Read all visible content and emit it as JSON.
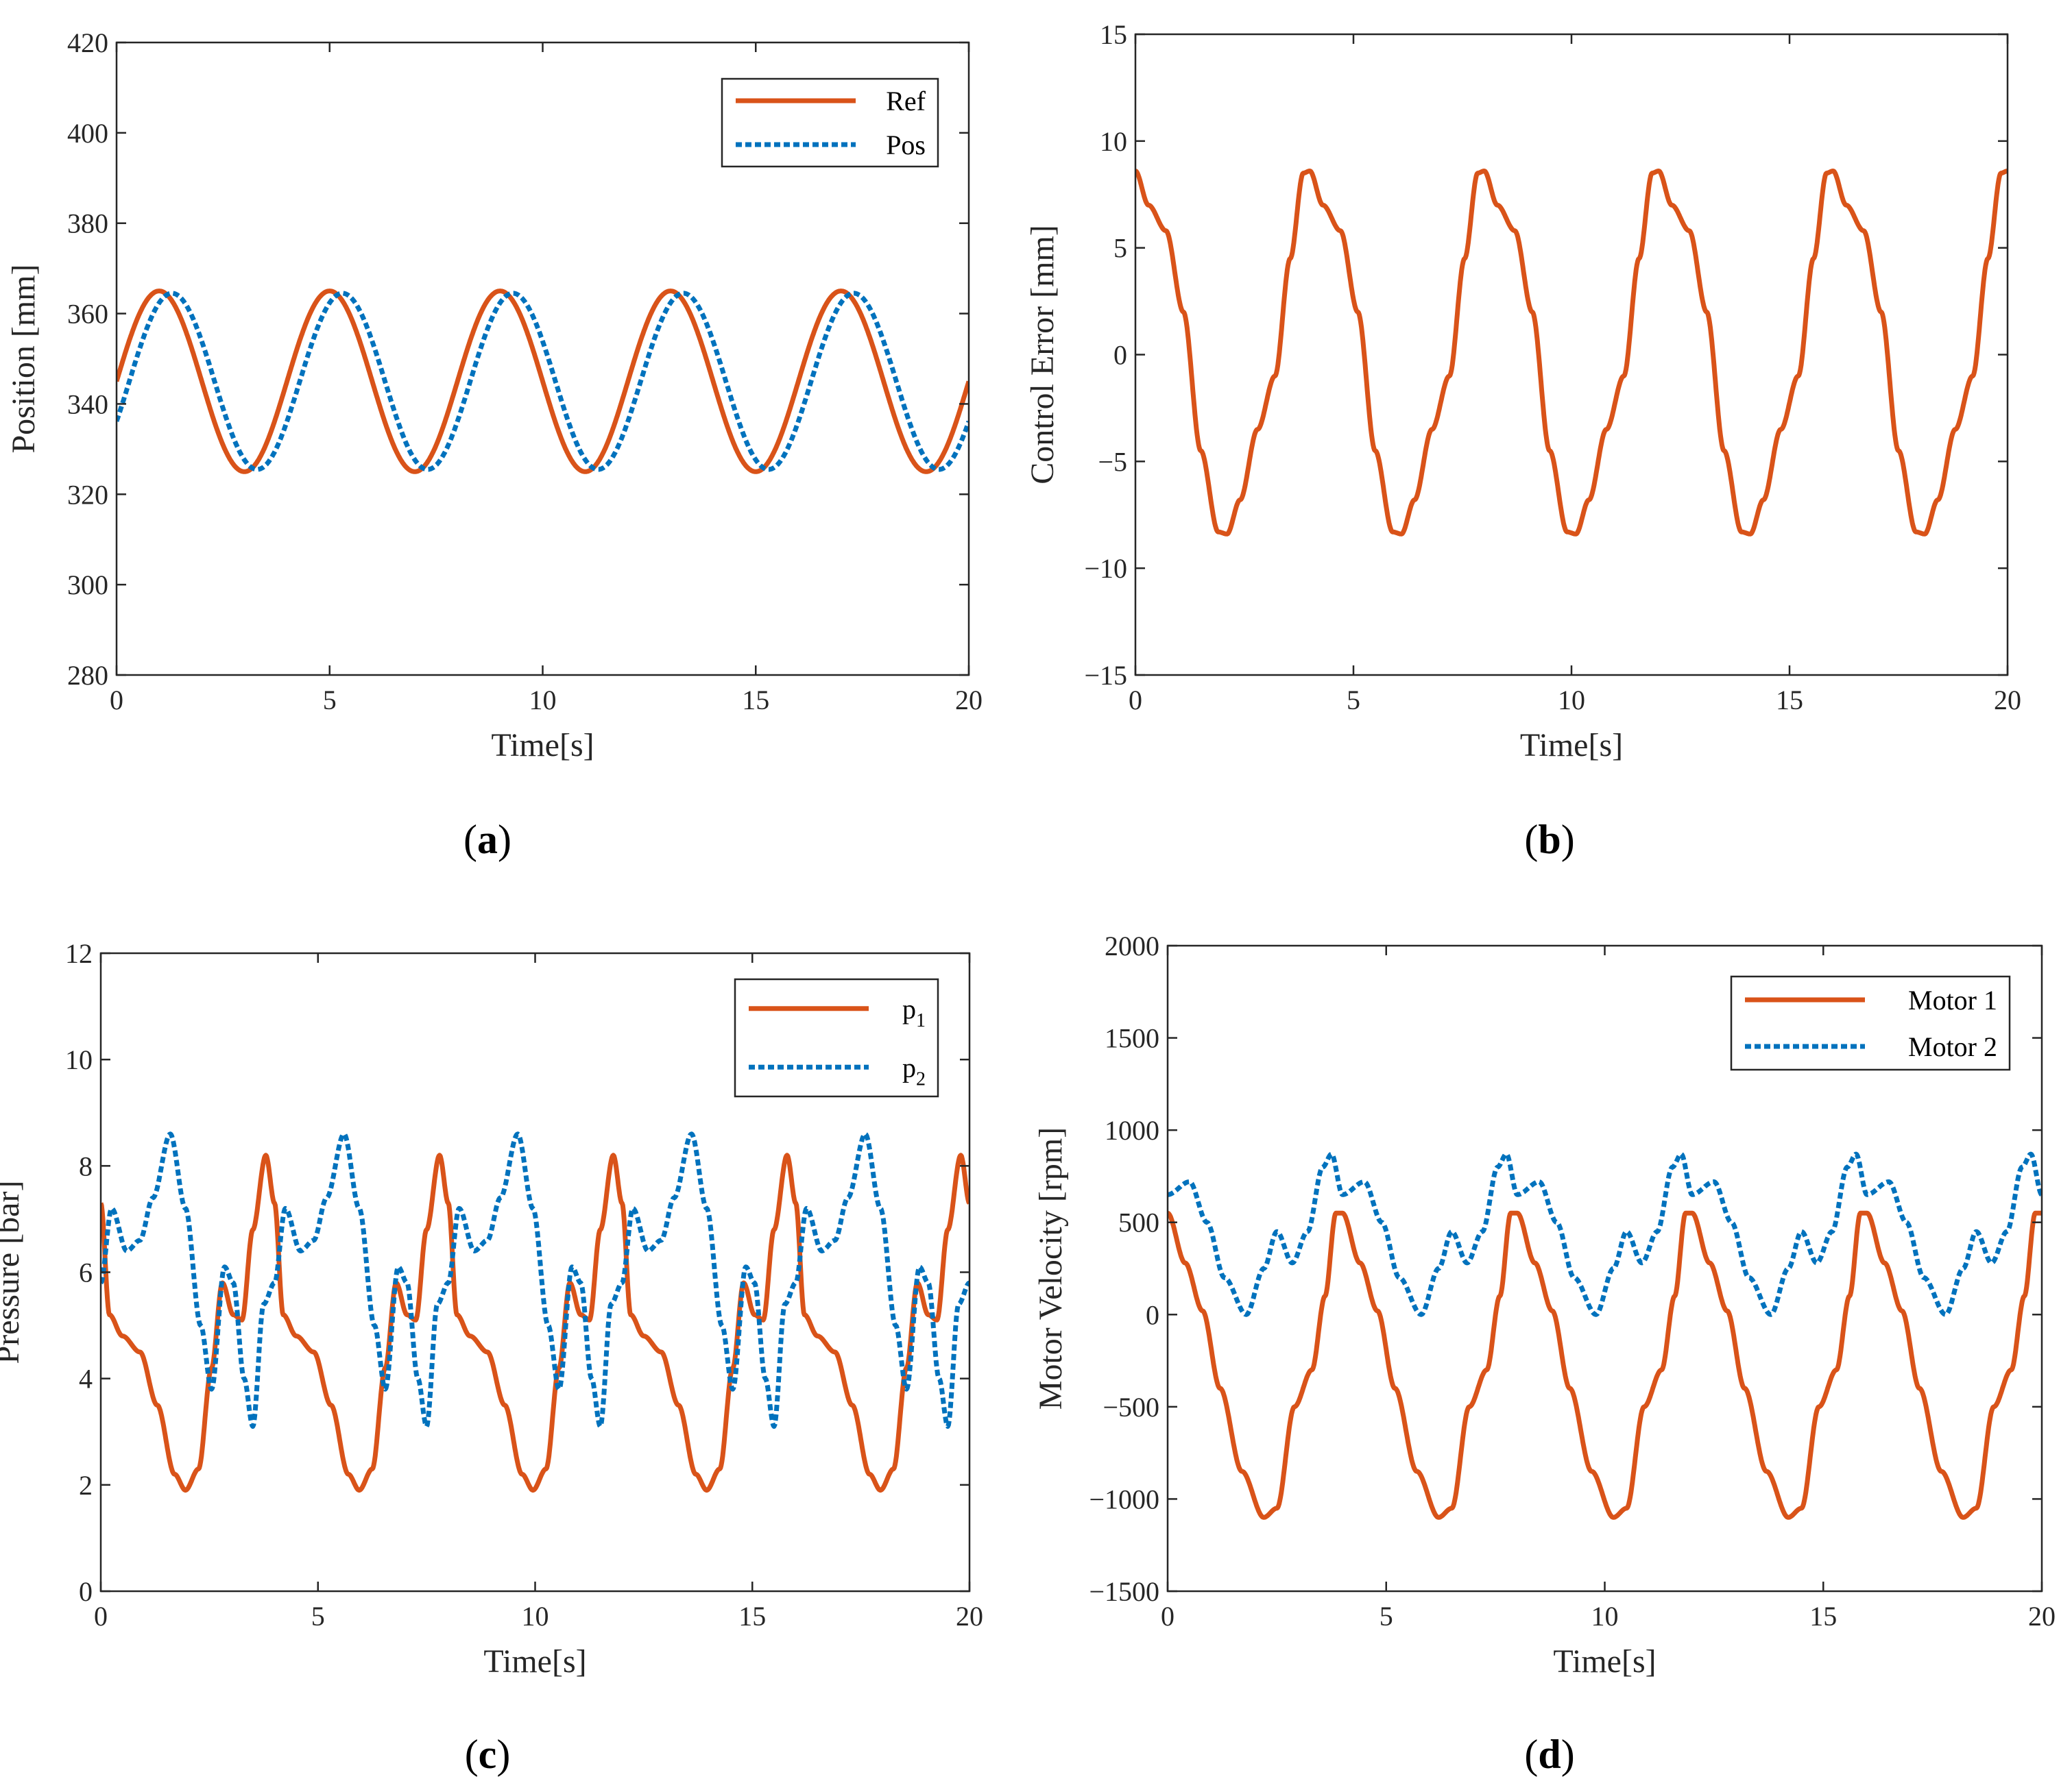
{
  "figure": {
    "colors": {
      "series1": "#D95319",
      "series2": "#0072BD",
      "axis": "#262626"
    }
  },
  "chart_data": [
    {
      "type": "line",
      "panel": "a",
      "caption": {
        "open": "(",
        "letter": "a",
        "close": ")"
      },
      "xlabel": "Time[s]",
      "ylabel": "Position [mm]",
      "xlim": [
        0,
        20
      ],
      "ylim": [
        280,
        420
      ],
      "xticks": [
        0,
        5,
        10,
        15,
        20
      ],
      "yticks": [
        280,
        300,
        320,
        340,
        360,
        380,
        400,
        420
      ],
      "legend_position": "top-right",
      "legend": [
        {
          "label": "Ref"
        },
        {
          "label": "Pos"
        }
      ],
      "series": [
        {
          "name": "Ref",
          "style": "solid",
          "model": {
            "kind": "sine",
            "offset": 345,
            "amplitude": 20,
            "period": 4,
            "phase_deg": 0
          }
        },
        {
          "name": "Pos",
          "style": "dotted",
          "model": {
            "kind": "sine",
            "offset": 345,
            "amplitude": 19.5,
            "period": 4,
            "lag": 0.3
          }
        }
      ]
    },
    {
      "type": "line",
      "panel": "b",
      "caption": {
        "open": "(",
        "letter": "b",
        "close": ")"
      },
      "xlabel": "Time[s]",
      "ylabel": "Control Error [mm]",
      "xlim": [
        0,
        20
      ],
      "ylim": [
        -15,
        15
      ],
      "xticks": [
        0,
        5,
        10,
        15,
        20
      ],
      "yticks": [
        -15,
        -10,
        -5,
        0,
        5,
        10,
        15
      ],
      "series": [
        {
          "name": "Error",
          "style": "solid",
          "period": 4,
          "cycle_points": [
            [
              0,
              8.6
            ],
            [
              0.3,
              7.0
            ],
            [
              0.7,
              5.8
            ],
            [
              1.1,
              2.0
            ],
            [
              1.5,
              -4.5
            ],
            [
              1.9,
              -8.3
            ],
            [
              2.1,
              -8.4
            ],
            [
              2.4,
              -6.8
            ],
            [
              2.8,
              -3.5
            ],
            [
              3.2,
              -1.0
            ],
            [
              3.55,
              4.5
            ],
            [
              3.85,
              8.5
            ],
            [
              4.0,
              8.6
            ]
          ]
        }
      ]
    },
    {
      "type": "line",
      "panel": "c",
      "caption": {
        "open": "(",
        "letter": "c",
        "close": ")"
      },
      "xlabel": "Time[s]",
      "ylabel": "Pressure [bar]",
      "xlim": [
        0,
        20
      ],
      "ylim": [
        0,
        12
      ],
      "xticks": [
        0,
        5,
        10,
        15,
        20
      ],
      "yticks": [
        0,
        2,
        4,
        6,
        8,
        10,
        12
      ],
      "legend_position": "top-right",
      "legend": [
        {
          "label": "p",
          "sub": "1"
        },
        {
          "label": "p",
          "sub": "2"
        }
      ],
      "series": [
        {
          "name": "p1",
          "style": "solid",
          "period": 4,
          "cycle_points": [
            [
              0,
              7.3
            ],
            [
              0.2,
              5.2
            ],
            [
              0.5,
              4.8
            ],
            [
              0.9,
              4.5
            ],
            [
              1.3,
              3.5
            ],
            [
              1.7,
              2.2
            ],
            [
              1.95,
              1.9
            ],
            [
              2.25,
              2.3
            ],
            [
              2.55,
              4.2
            ],
            [
              2.8,
              5.8
            ],
            [
              3.05,
              5.2
            ],
            [
              3.25,
              5.1
            ],
            [
              3.5,
              6.8
            ],
            [
              3.8,
              8.2
            ],
            [
              4.0,
              7.3
            ]
          ]
        },
        {
          "name": "p2",
          "style": "dotted",
          "period": 4,
          "cycle_points": [
            [
              0,
              5.8
            ],
            [
              0.25,
              7.2
            ],
            [
              0.6,
              6.4
            ],
            [
              0.9,
              6.6
            ],
            [
              1.2,
              7.4
            ],
            [
              1.6,
              8.6
            ],
            [
              1.95,
              7.2
            ],
            [
              2.3,
              5.0
            ],
            [
              2.55,
              3.8
            ],
            [
              2.85,
              6.1
            ],
            [
              3.05,
              5.8
            ],
            [
              3.3,
              4.0
            ],
            [
              3.5,
              3.1
            ],
            [
              3.75,
              5.4
            ],
            [
              4.0,
              5.8
            ]
          ]
        }
      ]
    },
    {
      "type": "line",
      "panel": "d",
      "caption": {
        "open": "(",
        "letter": "d",
        "close": ")"
      },
      "xlabel": "Time[s]",
      "ylabel": "Motor Velocity [rpm]",
      "xlim": [
        0,
        20
      ],
      "ylim": [
        -1500,
        2000
      ],
      "xticks": [
        0,
        5,
        10,
        15,
        20
      ],
      "yticks": [
        -1500,
        -1000,
        -500,
        0,
        500,
        1000,
        1500,
        2000
      ],
      "legend_position": "top-right",
      "legend": [
        {
          "label": "Motor 1"
        },
        {
          "label": "Motor 2"
        }
      ],
      "series": [
        {
          "name": "Motor 1",
          "style": "solid",
          "period": 4,
          "cycle_points": [
            [
              0,
              550
            ],
            [
              0.4,
              280
            ],
            [
              0.8,
              20
            ],
            [
              1.2,
              -400
            ],
            [
              1.7,
              -850
            ],
            [
              2.2,
              -1100
            ],
            [
              2.5,
              -1050
            ],
            [
              2.9,
              -500
            ],
            [
              3.3,
              -300
            ],
            [
              3.6,
              100
            ],
            [
              3.85,
              550
            ],
            [
              4.0,
              550
            ]
          ]
        },
        {
          "name": "Motor 2",
          "style": "dotted",
          "period": 4,
          "cycle_points": [
            [
              0,
              650
            ],
            [
              0.5,
              720
            ],
            [
              0.9,
              500
            ],
            [
              1.3,
              200
            ],
            [
              1.8,
              0
            ],
            [
              2.2,
              250
            ],
            [
              2.5,
              450
            ],
            [
              2.85,
              280
            ],
            [
              3.2,
              450
            ],
            [
              3.55,
              800
            ],
            [
              3.75,
              870
            ],
            [
              4.0,
              650
            ]
          ]
        }
      ]
    }
  ]
}
